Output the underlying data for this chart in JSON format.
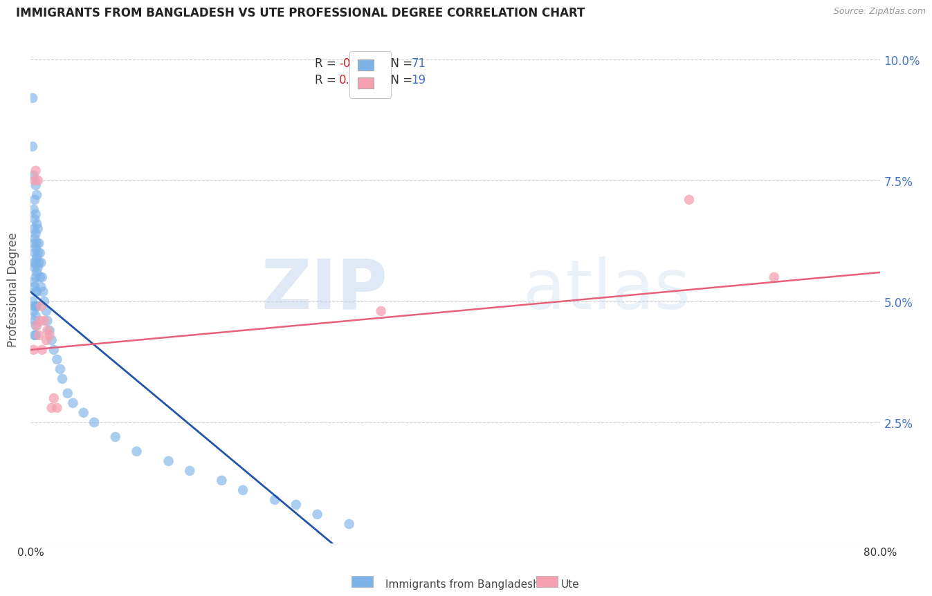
{
  "title": "IMMIGRANTS FROM BANGLADESH VS UTE PROFESSIONAL DEGREE CORRELATION CHART",
  "source": "Source: ZipAtlas.com",
  "ylabel": "Professional Degree",
  "legend_label_blue": "Immigrants from Bangladesh",
  "legend_label_pink": "Ute",
  "R_blue": -0.446,
  "N_blue": 71,
  "R_pink": 0.32,
  "N_pink": 19,
  "xlim": [
    0.0,
    0.8
  ],
  "ylim": [
    0.0,
    0.105
  ],
  "yticks": [
    0.0,
    0.025,
    0.05,
    0.075,
    0.1
  ],
  "ytick_labels": [
    "",
    "2.5%",
    "5.0%",
    "7.5%",
    "10.0%"
  ],
  "xticks": [
    0.0,
    0.2,
    0.4,
    0.6,
    0.8
  ],
  "xtick_labels": [
    "0.0%",
    "",
    "",
    "",
    "80.0%"
  ],
  "color_blue": "#7EB3E8",
  "color_pink": "#F4A0B0",
  "line_color_blue": "#2255AA",
  "line_color_pink": "#E8607A",
  "watermark_zip": "ZIP",
  "watermark_atlas": "atlas",
  "background_color": "#FFFFFF",
  "blue_scatter_x": [
    0.002,
    0.002,
    0.002,
    0.003,
    0.003,
    0.003,
    0.003,
    0.003,
    0.003,
    0.003,
    0.004,
    0.004,
    0.004,
    0.004,
    0.004,
    0.004,
    0.004,
    0.004,
    0.004,
    0.005,
    0.005,
    0.005,
    0.005,
    0.005,
    0.005,
    0.005,
    0.005,
    0.005,
    0.005,
    0.005,
    0.006,
    0.006,
    0.006,
    0.006,
    0.006,
    0.006,
    0.006,
    0.007,
    0.007,
    0.007,
    0.008,
    0.008,
    0.009,
    0.009,
    0.01,
    0.01,
    0.011,
    0.012,
    0.013,
    0.015,
    0.016,
    0.018,
    0.02,
    0.022,
    0.025,
    0.028,
    0.03,
    0.035,
    0.04,
    0.05,
    0.06,
    0.08,
    0.1,
    0.13,
    0.15,
    0.18,
    0.2,
    0.23,
    0.25,
    0.27,
    0.3
  ],
  "blue_scatter_y": [
    0.092,
    0.082,
    0.05,
    0.076,
    0.069,
    0.065,
    0.062,
    0.058,
    0.054,
    0.048,
    0.071,
    0.067,
    0.063,
    0.06,
    0.057,
    0.053,
    0.049,
    0.046,
    0.043,
    0.074,
    0.068,
    0.064,
    0.061,
    0.058,
    0.055,
    0.052,
    0.049,
    0.047,
    0.045,
    0.043,
    0.072,
    0.066,
    0.062,
    0.059,
    0.056,
    0.052,
    0.049,
    0.065,
    0.06,
    0.057,
    0.062,
    0.058,
    0.06,
    0.055,
    0.058,
    0.053,
    0.055,
    0.052,
    0.05,
    0.048,
    0.046,
    0.044,
    0.042,
    0.04,
    0.038,
    0.036,
    0.034,
    0.031,
    0.029,
    0.027,
    0.025,
    0.022,
    0.019,
    0.017,
    0.015,
    0.013,
    0.011,
    0.009,
    0.008,
    0.006,
    0.004
  ],
  "pink_scatter_x": [
    0.003,
    0.004,
    0.005,
    0.006,
    0.007,
    0.008,
    0.009,
    0.01,
    0.011,
    0.013,
    0.015,
    0.016,
    0.018,
    0.02,
    0.022,
    0.025,
    0.33,
    0.62,
    0.7
  ],
  "pink_scatter_y": [
    0.04,
    0.075,
    0.077,
    0.045,
    0.075,
    0.043,
    0.046,
    0.049,
    0.04,
    0.046,
    0.042,
    0.044,
    0.043,
    0.028,
    0.03,
    0.028,
    0.048,
    0.071,
    0.055
  ],
  "blue_line_x": [
    0.0,
    0.295
  ],
  "blue_line_y": [
    0.052,
    -0.002
  ],
  "pink_line_x": [
    0.0,
    0.8
  ],
  "pink_line_y": [
    0.04,
    0.056
  ]
}
